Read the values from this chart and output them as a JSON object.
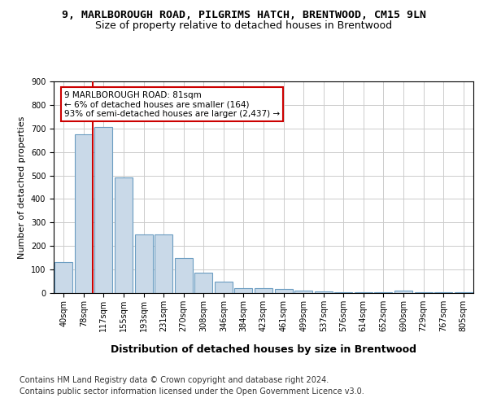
{
  "title1": "9, MARLBOROUGH ROAD, PILGRIMS HATCH, BRENTWOOD, CM15 9LN",
  "title2": "Size of property relative to detached houses in Brentwood",
  "xlabel": "Distribution of detached houses by size in Brentwood",
  "ylabel": "Number of detached properties",
  "categories": [
    "40sqm",
    "78sqm",
    "117sqm",
    "155sqm",
    "193sqm",
    "231sqm",
    "270sqm",
    "308sqm",
    "346sqm",
    "384sqm",
    "423sqm",
    "461sqm",
    "499sqm",
    "537sqm",
    "576sqm",
    "614sqm",
    "652sqm",
    "690sqm",
    "729sqm",
    "767sqm",
    "805sqm"
  ],
  "values": [
    130,
    675,
    705,
    490,
    250,
    250,
    150,
    85,
    48,
    20,
    20,
    18,
    10,
    7,
    5,
    5,
    3,
    10,
    2,
    2,
    2
  ],
  "bar_color": "#c9d9e8",
  "bar_edge_color": "#6b9dc2",
  "annotation_text": "9 MARLBOROUGH ROAD: 81sqm\n← 6% of detached houses are smaller (164)\n93% of semi-detached houses are larger (2,437) →",
  "annotation_box_color": "#ffffff",
  "annotation_box_edge": "#cc0000",
  "vline_color": "#cc0000",
  "ylim": [
    0,
    900
  ],
  "yticks": [
    0,
    100,
    200,
    300,
    400,
    500,
    600,
    700,
    800,
    900
  ],
  "footer1": "Contains HM Land Registry data © Crown copyright and database right 2024.",
  "footer2": "Contains public sector information licensed under the Open Government Licence v3.0.",
  "bg_color": "#ffffff",
  "grid_color": "#cccccc",
  "title1_fontsize": 9.5,
  "title2_fontsize": 9,
  "xlabel_fontsize": 9,
  "ylabel_fontsize": 8,
  "tick_fontsize": 7,
  "footer_fontsize": 7
}
